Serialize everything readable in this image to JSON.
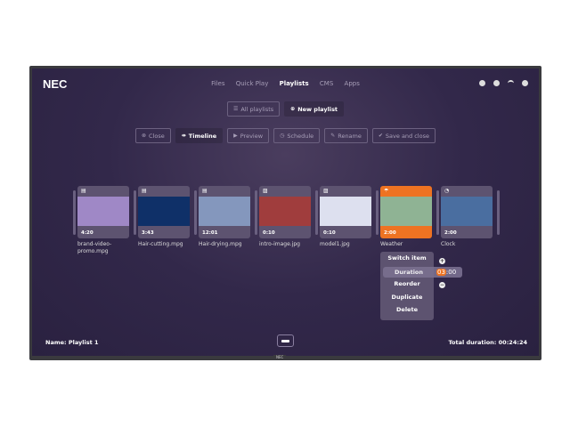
{
  "brand": "NEC",
  "nav": [
    "Files",
    "Quick Play",
    "Playlists",
    "CMS",
    "Apps"
  ],
  "nav_active": "Playlists",
  "status_icons": [
    "download-icon",
    "globe-icon",
    "wifi-icon",
    "gear-icon"
  ],
  "playlist_tabs": {
    "all": "All playlists",
    "new": "New playlist"
  },
  "toolbar": {
    "close": "Close",
    "timeline": "Timeline",
    "preview": "Preview",
    "schedule": "Schedule",
    "rename": "Rename",
    "save": "Save and close"
  },
  "items": [
    {
      "name": "brand-video-promo.mpg",
      "duration": "4:20",
      "type": "video",
      "color": "#9f88c6"
    },
    {
      "name": "Hair-cutting.mpg",
      "duration": "3:43",
      "type": "video",
      "color": "#0f3068"
    },
    {
      "name": "Hair-drying.mpg",
      "duration": "12:01",
      "type": "video",
      "color": "#8497bd"
    },
    {
      "name": "intro-image.jpg",
      "duration": "0:10",
      "type": "image",
      "color": "#a03d3d"
    },
    {
      "name": "model1.jpg",
      "duration": "0:10",
      "type": "image",
      "color": "#dde0ef"
    },
    {
      "name": "Weather",
      "duration": "2:00",
      "type": "weather",
      "color": "#8fb394",
      "selected": true
    },
    {
      "name": "Clock",
      "duration": "2:00",
      "type": "clock",
      "color": "#4a6ea0"
    }
  ],
  "context_menu": [
    "Switch item",
    "Duration",
    "Reorder",
    "Duplicate",
    "Delete"
  ],
  "duration_value": {
    "highlight": "03",
    "rest": ":00"
  },
  "footer": {
    "name": "Name: Playlist 1",
    "total": "Total duration: 00:24:24"
  },
  "bezel_brand": "NEC",
  "accent": "#ee7322"
}
